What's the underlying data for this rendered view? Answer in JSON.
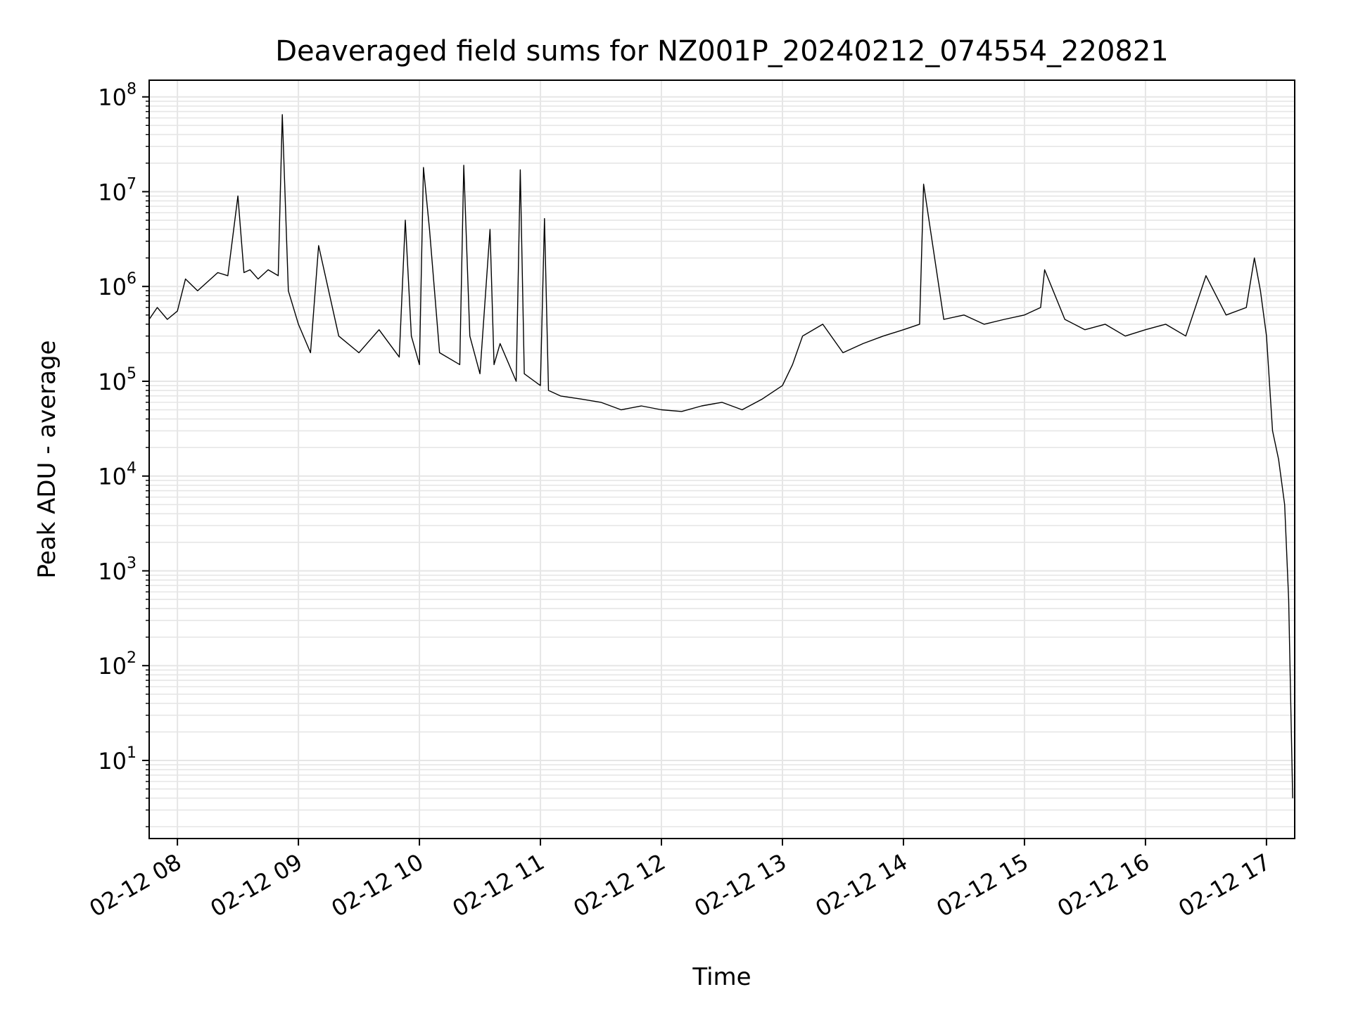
{
  "chart_data": {
    "type": "line",
    "title": "Deaveraged field sums for NZ001P_20240212_074554_220821",
    "xlabel": "Time",
    "ylabel": "Peak ADU - average",
    "yscale": "log",
    "ylim": [
      1.5,
      150000000
    ],
    "xlim": [
      "02-12 07:46",
      "02-12 17:14"
    ],
    "grid": true,
    "line_color": "#000000",
    "grid_color": "#e6e6e6",
    "x_ticks": [
      "02-12 08",
      "02-12 09",
      "02-12 10",
      "02-12 11",
      "02-12 12",
      "02-12 13",
      "02-12 14",
      "02-12 15",
      "02-12 16",
      "02-12 17"
    ],
    "y_ticks": [
      {
        "base": "10",
        "exp": "1"
      },
      {
        "base": "10",
        "exp": "2"
      },
      {
        "base": "10",
        "exp": "3"
      },
      {
        "base": "10",
        "exp": "4"
      },
      {
        "base": "10",
        "exp": "5"
      },
      {
        "base": "10",
        "exp": "6"
      },
      {
        "base": "10",
        "exp": "7"
      },
      {
        "base": "10",
        "exp": "8"
      }
    ],
    "series": [
      {
        "x": [
          "02-12 07:46",
          "02-12 07:50",
          "02-12 07:55",
          "02-12 08:00",
          "02-12 08:04",
          "02-12 08:10",
          "02-12 08:20",
          "02-12 08:25",
          "02-12 08:30",
          "02-12 08:33",
          "02-12 08:36",
          "02-12 08:40",
          "02-12 08:45",
          "02-12 08:50",
          "02-12 08:52",
          "02-12 08:55",
          "02-12 09:00",
          "02-12 09:06",
          "02-12 09:10",
          "02-12 09:20",
          "02-12 09:30",
          "02-12 09:40",
          "02-12 09:50",
          "02-12 09:53",
          "02-12 09:56",
          "02-12 10:00",
          "02-12 10:02",
          "02-12 10:05",
          "02-12 10:10",
          "02-12 10:20",
          "02-12 10:22",
          "02-12 10:25",
          "02-12 10:30",
          "02-12 10:35",
          "02-12 10:37",
          "02-12 10:40",
          "02-12 10:48",
          "02-12 10:50",
          "02-12 10:52",
          "02-12 11:00",
          "02-12 11:02",
          "02-12 11:04",
          "02-12 11:10",
          "02-12 11:20",
          "02-12 11:30",
          "02-12 11:40",
          "02-12 11:50",
          "02-12 12:00",
          "02-12 12:10",
          "02-12 12:20",
          "02-12 12:30",
          "02-12 12:40",
          "02-12 12:50",
          "02-12 13:00",
          "02-12 13:05",
          "02-12 13:10",
          "02-12 13:20",
          "02-12 13:30",
          "02-12 13:40",
          "02-12 13:50",
          "02-12 14:00",
          "02-12 14:08",
          "02-12 14:10",
          "02-12 14:20",
          "02-12 14:30",
          "02-12 14:40",
          "02-12 14:50",
          "02-12 15:00",
          "02-12 15:08",
          "02-12 15:10",
          "02-12 15:20",
          "02-12 15:30",
          "02-12 15:40",
          "02-12 15:50",
          "02-12 16:00",
          "02-12 16:10",
          "02-12 16:20",
          "02-12 16:30",
          "02-12 16:40",
          "02-12 16:50",
          "02-12 16:54",
          "02-12 16:57",
          "02-12 17:00",
          "02-12 17:03",
          "02-12 17:06",
          "02-12 17:09",
          "02-12 17:11",
          "02-12 17:13"
        ],
        "y": [
          450000,
          600000,
          450000,
          550000,
          1200000,
          900000,
          1400000,
          1300000,
          9000000,
          1400000,
          1500000,
          1200000,
          1500000,
          1300000,
          65000000,
          900000,
          400000,
          200000,
          2700000,
          300000,
          200000,
          350000,
          180000,
          5000000,
          300000,
          150000,
          18000000,
          4000000,
          200000,
          150000,
          19000000,
          300000,
          120000,
          4000000,
          150000,
          250000,
          100000,
          17000000,
          120000,
          90000,
          5200000,
          80000,
          70000,
          65000,
          60000,
          50000,
          55000,
          50000,
          48000,
          55000,
          60000,
          50000,
          65000,
          90000,
          150000,
          300000,
          400000,
          200000,
          250000,
          300000,
          350000,
          400000,
          12000000,
          450000,
          500000,
          400000,
          450000,
          500000,
          600000,
          1500000,
          450000,
          350000,
          400000,
          300000,
          350000,
          400000,
          300000,
          1300000,
          500000,
          600000,
          2000000,
          900000,
          300000,
          30000,
          15000,
          5000,
          500,
          4
        ]
      }
    ]
  }
}
